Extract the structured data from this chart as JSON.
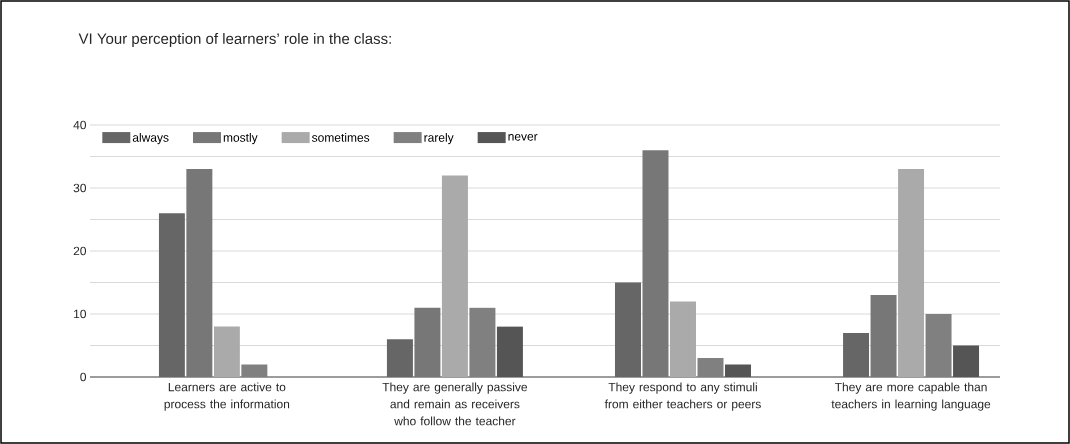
{
  "chart_data": {
    "type": "bar",
    "title": "VI Your perception of learners’ role in the class:",
    "categories": [
      "Learners are active to process the information",
      "They are generally passive and remain as receivers who follow the teacher",
      "They respond to any stimuli from either teachers or peers",
      "They are more capable than teachers in learning language"
    ],
    "series": [
      {
        "name": "always",
        "color": "#666666",
        "values": [
          26,
          6,
          15,
          7
        ]
      },
      {
        "name": "mostly",
        "color": "#777777",
        "values": [
          33,
          11,
          36,
          13
        ]
      },
      {
        "name": "sometimes",
        "color": "#aaaaaa",
        "values": [
          8,
          32,
          12,
          33
        ]
      },
      {
        "name": "rarely",
        "color": "#808080",
        "values": [
          2,
          11,
          3,
          10
        ]
      },
      {
        "name": "never",
        "color": "#555555",
        "values": [
          0,
          8,
          2,
          5
        ]
      }
    ],
    "ylim": [
      0,
      40
    ],
    "yticks": [
      0,
      {
        "value": 5,
        "label": null
      },
      10,
      {
        "value": 15,
        "label": null
      },
      20,
      {
        "value": 25,
        "label": null
      },
      30,
      {
        "value": 35,
        "label": null
      },
      40
    ],
    "grid": "y",
    "legend": "top left"
  }
}
